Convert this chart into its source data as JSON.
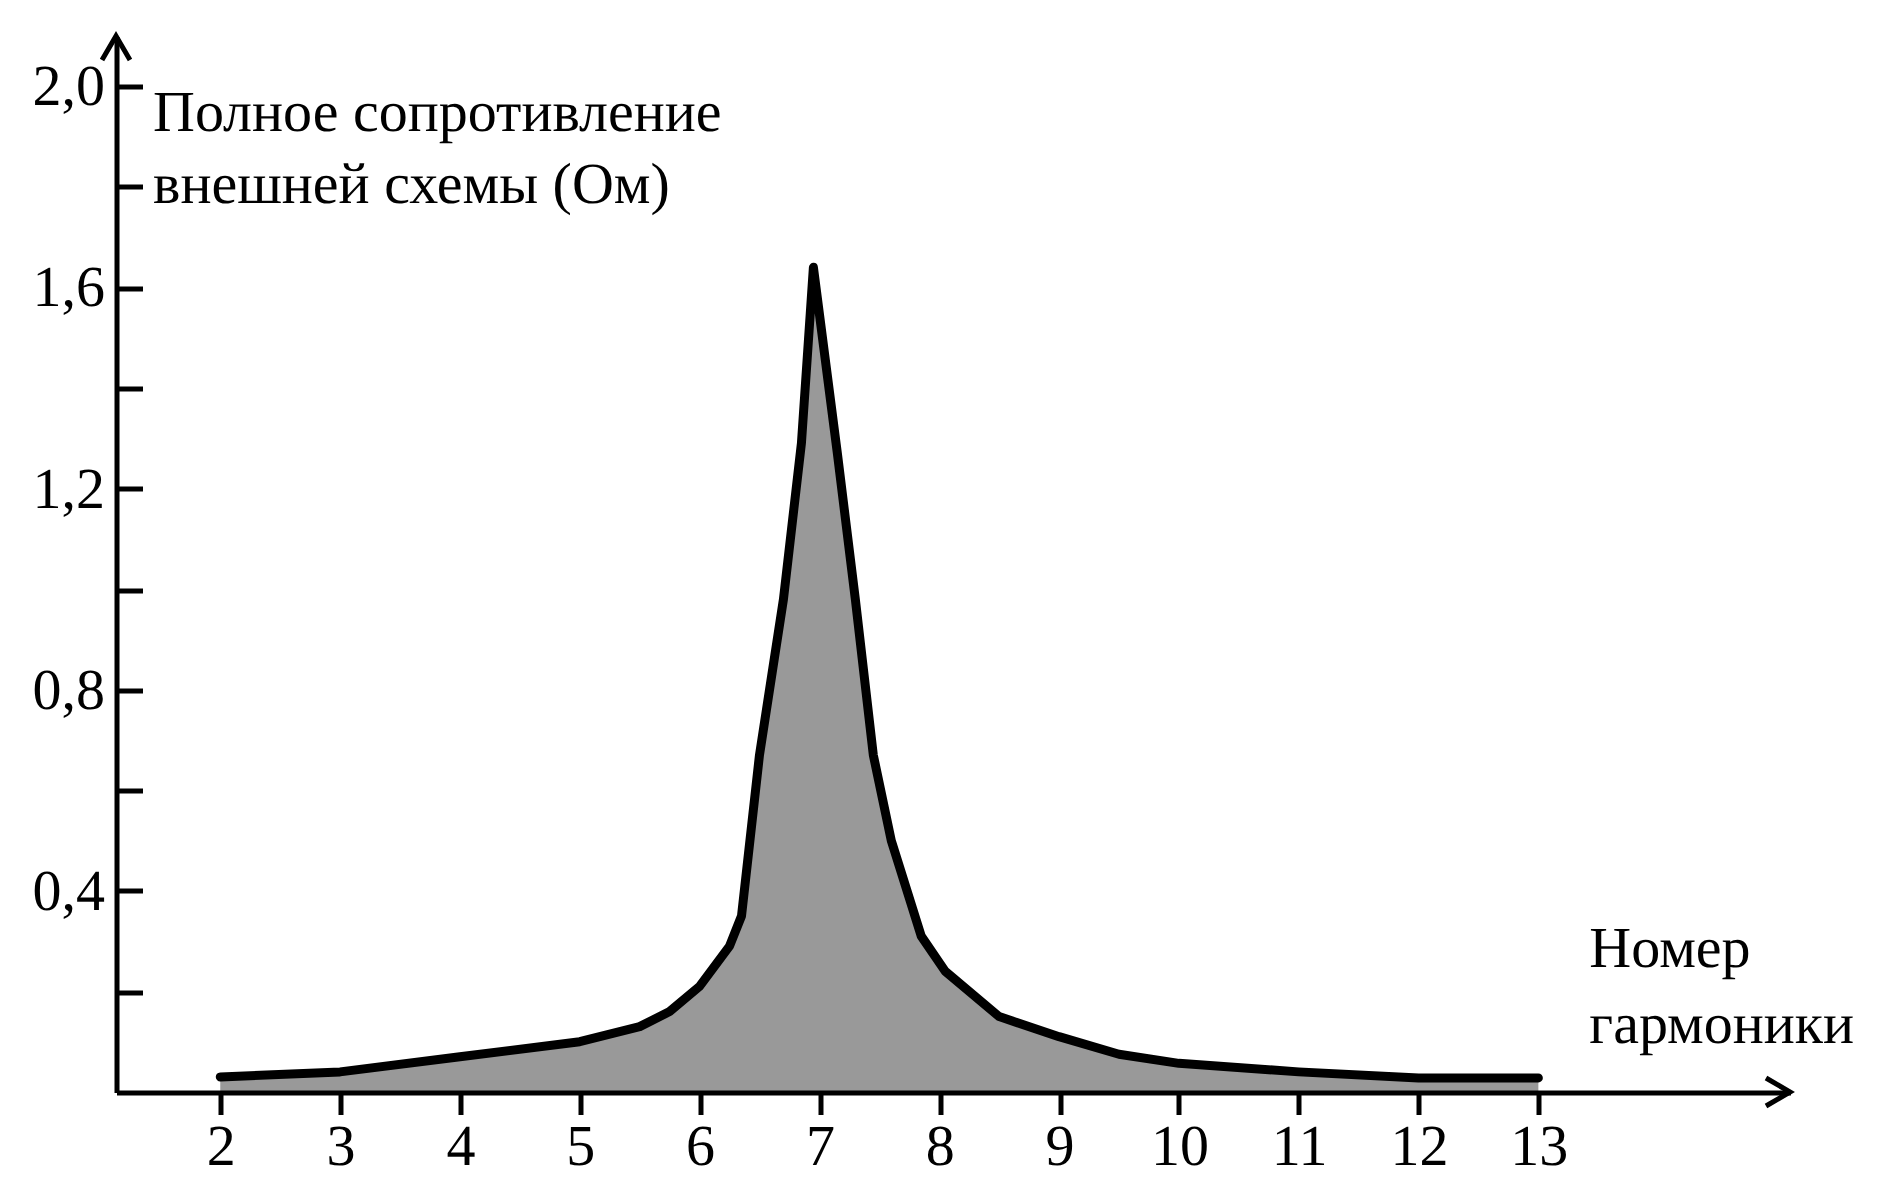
{
  "chart_data": {
    "type": "area",
    "xlabel": "Номер гармоники",
    "ylabel": "Полное сопротивление внешней схемы (Ом)",
    "x": [
      2,
      3,
      4,
      5,
      5.5,
      5.75,
      6,
      6.25,
      6.35,
      6.5,
      6.7,
      6.85,
      6.95,
      7.15,
      7.3,
      7.45,
      7.6,
      7.85,
      8.05,
      8.5,
      9,
      9.5,
      10,
      11,
      12,
      13
    ],
    "values": [
      0.03,
      0.04,
      0.07,
      0.1,
      0.13,
      0.16,
      0.21,
      0.29,
      0.35,
      0.67,
      0.98,
      1.29,
      1.64,
      1.27,
      0.98,
      0.67,
      0.5,
      0.31,
      0.24,
      0.15,
      0.11,
      0.075,
      0.057,
      0.04,
      0.028,
      0.028
    ],
    "color": "#000000",
    "xlim": [
      1.13,
      15.1
    ],
    "ylim": [
      0,
      2.1
    ],
    "xticks": [
      2,
      3,
      4,
      5,
      6,
      7,
      8,
      9,
      10,
      11,
      12,
      13
    ],
    "yticks": [
      {
        "value": 0.2,
        "label": null
      },
      {
        "value": 0.4,
        "label": "0,4"
      },
      {
        "value": 0.6,
        "label": null
      },
      {
        "value": 0.8,
        "label": "0,8"
      },
      {
        "value": 1.0,
        "label": null
      },
      {
        "value": 1.2,
        "label": "1,2"
      },
      {
        "value": 1.4,
        "label": null
      },
      {
        "value": 1.6,
        "label": "1,6"
      },
      {
        "value": 1.8,
        "label": null
      },
      {
        "value": 2.0,
        "label": "2,0"
      }
    ]
  }
}
